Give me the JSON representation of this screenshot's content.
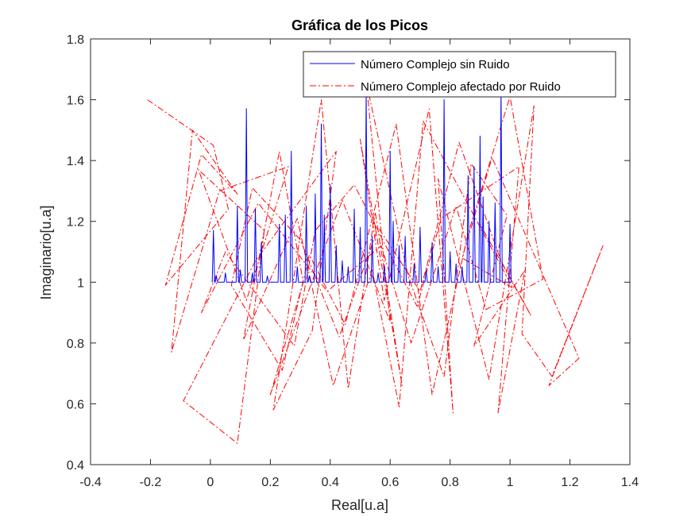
{
  "chart_data": {
    "type": "line",
    "title": "Gráfica de los Picos",
    "xlabel": "Real[u.a]",
    "ylabel": "Imaginario[u.a]",
    "xlim": [
      -0.4,
      1.4
    ],
    "ylim": [
      0.4,
      1.8
    ],
    "xticks": [
      -0.4,
      -0.2,
      0,
      0.2,
      0.4,
      0.6,
      0.8,
      1,
      1.2,
      1.4
    ],
    "yticks": [
      0.4,
      0.6,
      0.8,
      1,
      1.2,
      1.4,
      1.6,
      1.8
    ],
    "xtick_labels": [
      "-0.4",
      "-0.2",
      "0",
      "0.2",
      "0.4",
      "0.6",
      "0.8",
      "1",
      "1.2",
      "1.4"
    ],
    "ytick_labels": [
      "0.4",
      "0.6",
      "0.8",
      "1",
      "1.2",
      "1.4",
      "1.6",
      "1.8"
    ],
    "grid": false,
    "legend_position": "top-right",
    "series": [
      {
        "name": "Número Complejo sin Ruido",
        "color": "#0000ff",
        "line_style": "solid",
        "peaks": [
          [
            0.01,
            1.17
          ],
          [
            0.02,
            1.02
          ],
          [
            0.05,
            1.03
          ],
          [
            0.09,
            1.25
          ],
          [
            0.1,
            1.04
          ],
          [
            0.12,
            1.57
          ],
          [
            0.14,
            1.03
          ],
          [
            0.15,
            1.24
          ],
          [
            0.17,
            1.13
          ],
          [
            0.19,
            1.02
          ],
          [
            0.23,
            1.19
          ],
          [
            0.25,
            1.22
          ],
          [
            0.27,
            1.43
          ],
          [
            0.29,
            1.05
          ],
          [
            0.32,
            1.25
          ],
          [
            0.33,
            1.02
          ],
          [
            0.35,
            1.29
          ],
          [
            0.37,
            1.52
          ],
          [
            0.38,
            1.22
          ],
          [
            0.4,
            1.32
          ],
          [
            0.42,
            1.12
          ],
          [
            0.44,
            1.07
          ],
          [
            0.46,
            1.05
          ],
          [
            0.48,
            1.24
          ],
          [
            0.5,
            1.18
          ],
          [
            0.52,
            1.62
          ],
          [
            0.54,
            1.15
          ],
          [
            0.56,
            1.03
          ],
          [
            0.58,
            1.05
          ],
          [
            0.6,
            1.43
          ],
          [
            0.61,
            1.2
          ],
          [
            0.63,
            1.12
          ],
          [
            0.65,
            1.15
          ],
          [
            0.68,
            1.06
          ],
          [
            0.7,
            1.18
          ],
          [
            0.72,
            1.04
          ],
          [
            0.74,
            1.13
          ],
          [
            0.76,
            1.05
          ],
          [
            0.78,
            1.6
          ],
          [
            0.8,
            1.1
          ],
          [
            0.82,
            1.06
          ],
          [
            0.84,
            1.05
          ],
          [
            0.86,
            1.35
          ],
          [
            0.88,
            1.38
          ],
          [
            0.9,
            1.48
          ],
          [
            0.91,
            1.28
          ],
          [
            0.93,
            1.2
          ],
          [
            0.95,
            1.26
          ],
          [
            0.97,
            1.63
          ],
          [
            1.0,
            1.19
          ]
        ]
      },
      {
        "name": "Número Complejo afectado por Ruido",
        "color": "#ff0000",
        "line_style": "dash-dot",
        "points": [
          [
            -0.21,
            1.6
          ],
          [
            0.01,
            1.45
          ],
          [
            0.06,
            1.24
          ],
          [
            -0.15,
            0.99
          ],
          [
            -0.03,
            1.42
          ],
          [
            0.09,
            1.29
          ],
          [
            -0.06,
            1.5
          ],
          [
            -0.13,
            0.77
          ],
          [
            0.03,
            1.3
          ],
          [
            0.26,
            1.38
          ],
          [
            0.12,
            0.94
          ],
          [
            -0.04,
            1.37
          ],
          [
            0.18,
            1.17
          ],
          [
            0.09,
            0.47
          ],
          [
            -0.09,
            0.61
          ],
          [
            0.15,
            1.07
          ],
          [
            0.42,
            1.43
          ],
          [
            0.34,
            0.84
          ],
          [
            0.21,
            0.58
          ],
          [
            0.37,
            1.6
          ],
          [
            0.46,
            0.65
          ],
          [
            0.55,
            1.23
          ],
          [
            0.64,
            0.66
          ],
          [
            0.5,
            1.47
          ],
          [
            0.58,
            0.94
          ],
          [
            0.73,
            1.57
          ],
          [
            0.81,
            0.57
          ],
          [
            0.76,
            1.34
          ],
          [
            0.93,
            0.68
          ],
          [
            1.08,
            1.58
          ],
          [
            1.04,
            0.83
          ],
          [
            1.14,
            0.69
          ],
          [
            1.31,
            1.12
          ],
          [
            1.13,
            0.66
          ],
          [
            1.23,
            0.75
          ],
          [
            0.94,
            1.41
          ],
          [
            0.84,
            1.08
          ],
          [
            1.01,
            0.98
          ],
          [
            0.71,
            1.53
          ],
          [
            0.63,
            0.59
          ],
          [
            0.54,
            1.04
          ],
          [
            0.41,
            0.66
          ],
          [
            0.29,
            1.21
          ],
          [
            0.11,
            0.81
          ],
          [
            0.23,
            1.43
          ],
          [
            0.31,
            1.0
          ],
          [
            0.2,
            0.63
          ],
          [
            0.44,
            1.27
          ],
          [
            0.6,
            0.87
          ],
          [
            0.52,
            1.66
          ],
          [
            0.66,
            1.02
          ],
          [
            0.78,
            0.69
          ],
          [
            0.87,
            1.39
          ],
          [
            0.99,
            1.22
          ],
          [
            0.88,
            0.79
          ],
          [
            1.05,
            1.04
          ],
          [
            0.96,
            0.57
          ],
          [
            1.03,
            1.38
          ],
          [
            0.77,
            1.21
          ],
          [
            0.69,
            0.92
          ],
          [
            0.48,
            1.32
          ],
          [
            0.35,
            1.17
          ],
          [
            0.28,
            0.79
          ],
          [
            0.05,
            1.1
          ],
          [
            -0.03,
            0.9
          ],
          [
            0.16,
            1.26
          ],
          [
            0.39,
            0.97
          ],
          [
            0.57,
            1.12
          ],
          [
            0.67,
            0.8
          ],
          [
            0.82,
            1.25
          ],
          [
            0.92,
            0.91
          ],
          [
            1.11,
            1.01
          ],
          [
            1.0,
            1.61
          ],
          [
            0.86,
            1.16
          ],
          [
            0.74,
            0.63
          ],
          [
            0.62,
            1.52
          ],
          [
            0.45,
            0.86
          ],
          [
            0.33,
            1.09
          ],
          [
            0.24,
            0.71
          ],
          [
            0.07,
            0.99
          ],
          [
            0.14,
            1.31
          ],
          [
            0.3,
            1.14
          ],
          [
            0.43,
            0.82
          ],
          [
            0.56,
            1.18
          ],
          [
            0.7,
            0.97
          ],
          [
            0.83,
            1.46
          ],
          [
            0.97,
            1.07
          ],
          [
            1.07,
            0.89
          ],
          [
            0.9,
            1.19
          ]
        ]
      }
    ]
  }
}
